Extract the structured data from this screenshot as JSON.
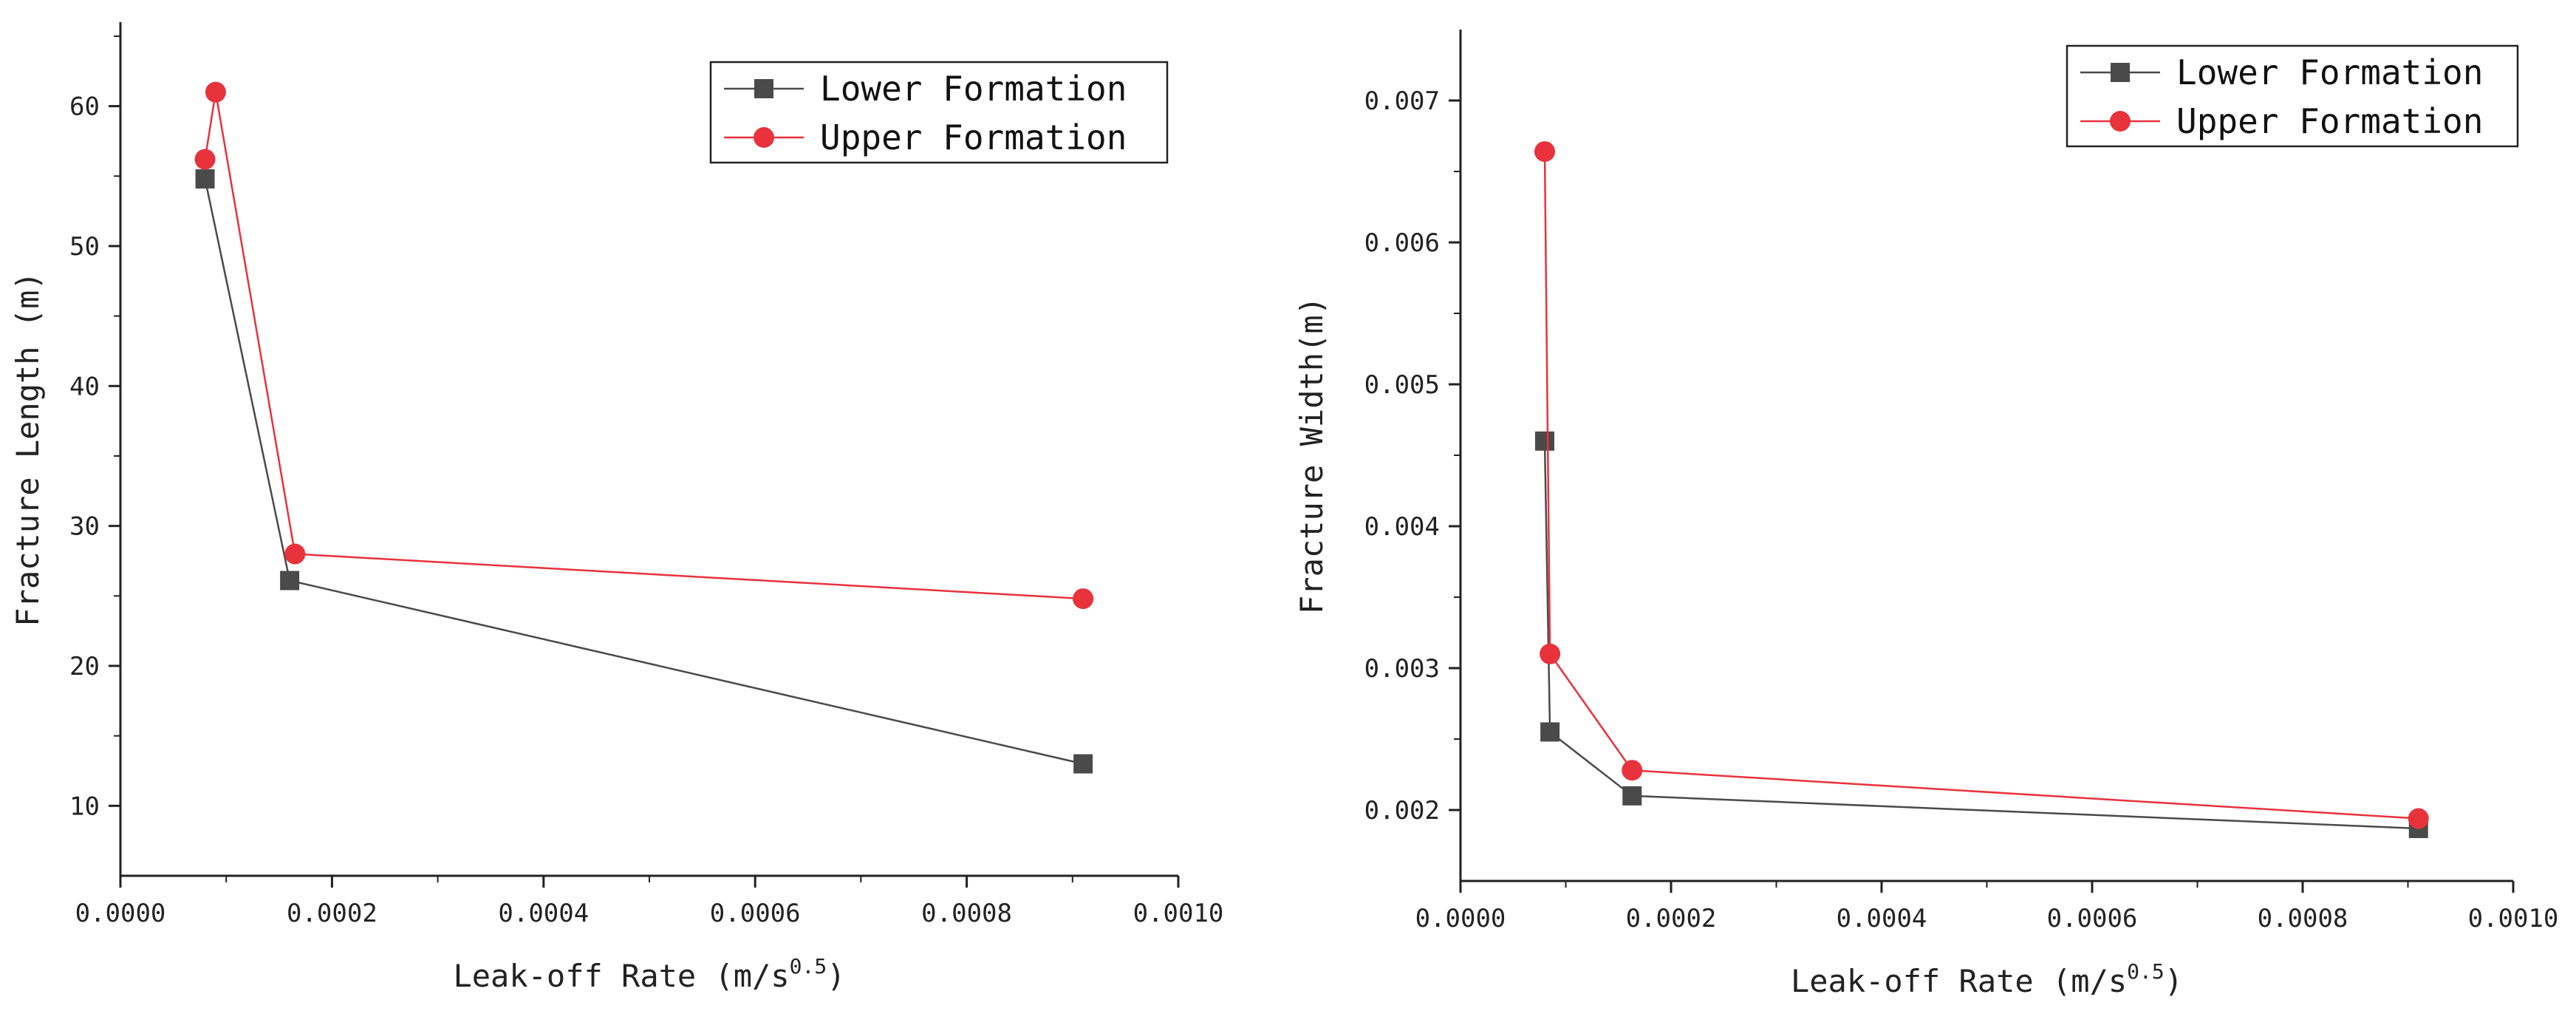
{
  "chart_data": [
    {
      "type": "line",
      "title": "",
      "xlabel": "Leak-off Rate (m/s",
      "xlabel_sup": "0.5",
      "xlabel_close": ")",
      "ylabel": "Fracture Length (m)",
      "xlim": [
        0.0,
        0.001
      ],
      "ylim": [
        5,
        66
      ],
      "xticks": [
        0.0,
        0.0002,
        0.0004,
        0.0006,
        0.0008,
        0.001
      ],
      "xtick_labels": [
        "0.0000",
        "0.0002",
        "0.0004",
        "0.0006",
        "0.0008",
        "0.0010"
      ],
      "yticks": [
        10,
        20,
        30,
        40,
        50,
        60
      ],
      "ytick_labels": [
        "10",
        "20",
        "30",
        "40",
        "50",
        "60"
      ],
      "legend_position": "top-right",
      "series": [
        {
          "name": "Lower Formation",
          "color": "#4a4a4a",
          "marker": "square",
          "x": [
            8e-05,
            0.00016,
            0.00091
          ],
          "y": [
            54.8,
            26.1,
            13.0
          ]
        },
        {
          "name": "Upper Formation",
          "color": "#e8323c",
          "marker": "circle",
          "x": [
            8e-05,
            9e-05,
            0.000165,
            0.00091
          ],
          "y": [
            56.2,
            61.0,
            28.0,
            24.8
          ]
        }
      ]
    },
    {
      "type": "line",
      "title": "",
      "xlabel": "Leak-off Rate (m/s",
      "xlabel_sup": "0.5",
      "xlabel_close": ")",
      "ylabel": "Fracture Width(m)",
      "xlim": [
        0.0,
        0.001
      ],
      "ylim": [
        0.0015,
        0.0075
      ],
      "xticks": [
        0.0,
        0.0002,
        0.0004,
        0.0006,
        0.0008,
        0.001
      ],
      "xtick_labels": [
        "0.0000",
        "0.0002",
        "0.0004",
        "0.0006",
        "0.0008",
        "0.0010"
      ],
      "yticks": [
        0.002,
        0.003,
        0.004,
        0.005,
        0.006,
        0.007
      ],
      "ytick_labels": [
        "0.002",
        "0.003",
        "0.004",
        "0.005",
        "0.006",
        "0.007"
      ],
      "legend_position": "top-right",
      "series": [
        {
          "name": "Lower Formation",
          "color": "#4a4a4a",
          "marker": "square",
          "x": [
            8e-05,
            8.5e-05,
            0.000163,
            0.00091
          ],
          "y": [
            0.0046,
            0.00255,
            0.0021,
            0.00187
          ]
        },
        {
          "name": "Upper Formation",
          "color": "#e8323c",
          "marker": "circle",
          "x": [
            8e-05,
            8.5e-05,
            0.000163,
            0.00091
          ],
          "y": [
            0.00664,
            0.0031,
            0.00228,
            0.00194
          ]
        }
      ]
    }
  ]
}
